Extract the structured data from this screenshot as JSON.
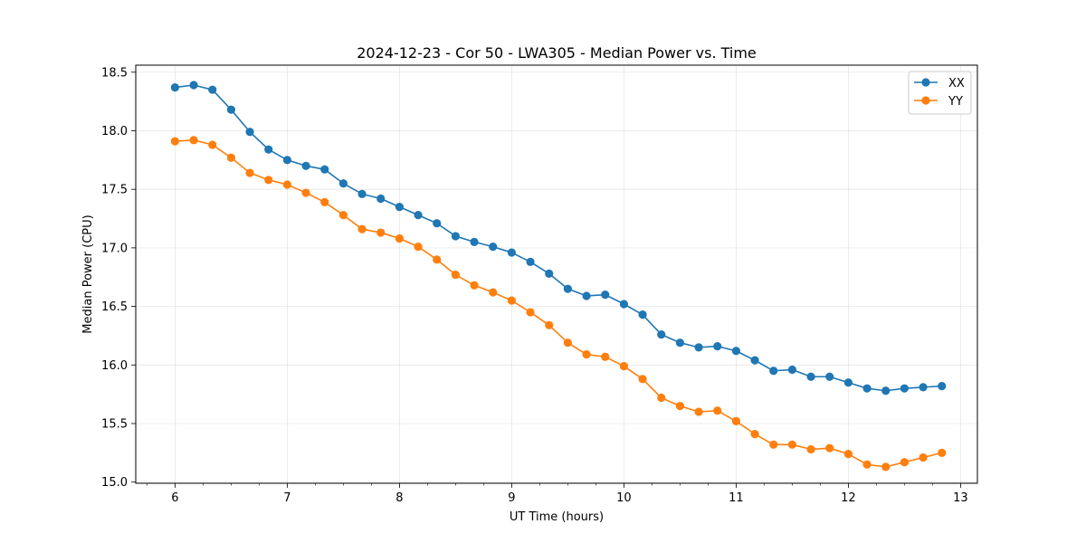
{
  "chart_data": {
    "type": "line",
    "title": "2024-12-23 - Cor 50 - LWA305 - Median Power vs. Time",
    "xlabel": "UT Time (hours)",
    "ylabel": "Median Power (CPU)",
    "xlim": [
      5.65,
      13.15
    ],
    "ylim": [
      14.99,
      18.56
    ],
    "xticks": [
      6,
      7,
      8,
      9,
      10,
      11,
      12,
      13
    ],
    "yticks": [
      15.0,
      15.5,
      16.0,
      16.5,
      17.0,
      17.5,
      18.0,
      18.5
    ],
    "ytick_labels": [
      "15.0",
      "15.5",
      "16.0",
      "16.5",
      "17.0",
      "17.5",
      "18.0",
      "18.5"
    ],
    "grid": true,
    "legend_position": "top-right",
    "x": [
      6.0,
      6.1667,
      6.3333,
      6.5,
      6.6667,
      6.8333,
      7.0,
      7.1667,
      7.3333,
      7.5,
      7.6667,
      7.8333,
      8.0,
      8.1667,
      8.3333,
      8.5,
      8.6667,
      8.8333,
      9.0,
      9.1667,
      9.3333,
      9.5,
      9.6667,
      9.8333,
      10.0,
      10.1667,
      10.3333,
      10.5,
      10.6667,
      10.8333,
      11.0,
      11.1667,
      11.3333,
      11.5,
      11.6667,
      11.8333,
      12.0,
      12.1667,
      12.3333,
      12.5,
      12.6667,
      12.8333
    ],
    "series": [
      {
        "name": "XX",
        "color": "#1f77b4",
        "values": [
          18.37,
          18.39,
          18.35,
          18.18,
          17.99,
          17.84,
          17.75,
          17.7,
          17.67,
          17.55,
          17.46,
          17.42,
          17.35,
          17.28,
          17.21,
          17.1,
          17.05,
          17.01,
          16.96,
          16.88,
          16.78,
          16.65,
          16.59,
          16.6,
          16.52,
          16.43,
          16.26,
          16.19,
          16.15,
          16.16,
          16.12,
          16.04,
          15.95,
          15.96,
          15.9,
          15.9,
          15.85,
          15.8,
          15.78,
          15.8,
          15.81,
          15.82
        ]
      },
      {
        "name": "YY",
        "color": "#ff7f0e",
        "values": [
          17.91,
          17.92,
          17.88,
          17.77,
          17.64,
          17.58,
          17.54,
          17.47,
          17.39,
          17.28,
          17.16,
          17.13,
          17.08,
          17.01,
          16.9,
          16.77,
          16.68,
          16.62,
          16.55,
          16.45,
          16.34,
          16.19,
          16.09,
          16.07,
          15.99,
          15.88,
          15.72,
          15.65,
          15.6,
          15.61,
          15.52,
          15.41,
          15.32,
          15.32,
          15.28,
          15.29,
          15.24,
          15.15,
          15.13,
          15.17,
          15.21,
          15.25
        ]
      }
    ]
  }
}
